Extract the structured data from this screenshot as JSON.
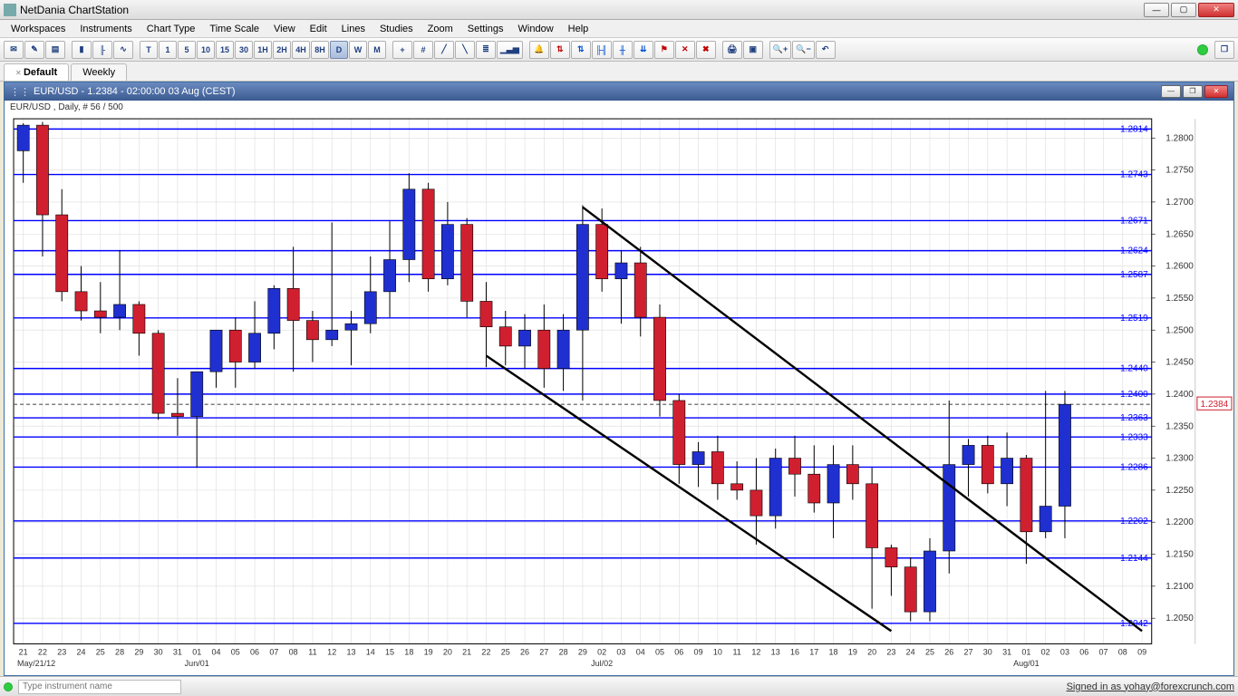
{
  "app": {
    "title": "NetDania ChartStation",
    "signed_in": "Signed in as yohay@forexcrunch.com"
  },
  "menu": [
    "Workspaces",
    "Instruments",
    "Chart Type",
    "Time Scale",
    "View",
    "Edit",
    "Lines",
    "Studies",
    "Zoom",
    "Settings",
    "Window",
    "Help"
  ],
  "toolbar": {
    "timeframes": [
      "T",
      "1",
      "5",
      "10",
      "15",
      "30",
      "1H",
      "2H",
      "4H",
      "8H",
      "D",
      "W",
      "M"
    ],
    "active_tf": "D"
  },
  "tabs": [
    {
      "label": "Default",
      "active": true
    },
    {
      "label": "Weekly",
      "active": false
    }
  ],
  "chart": {
    "header": "EUR/USD - 1.2384 - 02:00:00  03 Aug  (CEST)",
    "subheader": "EUR/USD , Daily, # 56 / 500",
    "current_price": 1.2384,
    "y_axis": {
      "min": 1.201,
      "max": 1.283,
      "step": 0.005,
      "ticks": [
        1.205,
        1.21,
        1.215,
        1.22,
        1.225,
        1.23,
        1.235,
        1.24,
        1.245,
        1.25,
        1.255,
        1.26,
        1.265,
        1.27,
        1.275,
        1.28
      ]
    },
    "x_axis": {
      "start_label": "May/21/12",
      "labels": [
        "21",
        "22",
        "23",
        "24",
        "25",
        "28",
        "29",
        "30",
        "31",
        "01",
        "04",
        "05",
        "06",
        "07",
        "08",
        "11",
        "12",
        "13",
        "14",
        "15",
        "18",
        "19",
        "20",
        "21",
        "22",
        "25",
        "26",
        "27",
        "28",
        "29",
        "02",
        "03",
        "04",
        "05",
        "06",
        "09",
        "10",
        "11",
        "12",
        "13",
        "16",
        "17",
        "18",
        "19",
        "20",
        "23",
        "24",
        "25",
        "26",
        "27",
        "30",
        "31",
        "01",
        "02",
        "03",
        "06",
        "07",
        "08",
        "09"
      ],
      "month_markers": {
        "Jun/01": 9,
        "Jul/02": 30,
        "Aug/01": 52
      }
    },
    "horizontal_lines": {
      "values": [
        1.2042,
        1.2144,
        1.2202,
        1.2286,
        1.2333,
        1.2363,
        1.24,
        1.244,
        1.2519,
        1.2587,
        1.2624,
        1.2671,
        1.2743,
        1.2814
      ],
      "color": "#0000ff"
    },
    "channel": {
      "color": "#000000",
      "width": 2.4,
      "upper_start_idx": 29,
      "upper_start_val": 1.2692,
      "upper_end_idx": 58,
      "upper_end_val": 1.203,
      "lower_start_idx": 24,
      "lower_start_val": 1.246,
      "lower_end_idx": 45,
      "lower_end_val": 1.203
    },
    "colors": {
      "up_body": "#2030d0",
      "down_body": "#d02030",
      "wick": "#000000",
      "grid": "#dcdcdc",
      "axis_text": "#333333",
      "hline_text": "#0000ff",
      "price_box_border": "#d02030",
      "dashed": "#555555"
    },
    "candles": [
      {
        "o": 1.278,
        "h": 1.2823,
        "l": 1.273,
        "c": 1.282
      },
      {
        "o": 1.282,
        "h": 1.2825,
        "l": 1.2615,
        "c": 1.268
      },
      {
        "o": 1.268,
        "h": 1.272,
        "l": 1.2545,
        "c": 1.256
      },
      {
        "o": 1.256,
        "h": 1.26,
        "l": 1.2515,
        "c": 1.253
      },
      {
        "o": 1.253,
        "h": 1.2575,
        "l": 1.2495,
        "c": 1.252
      },
      {
        "o": 1.252,
        "h": 1.2625,
        "l": 1.25,
        "c": 1.254
      },
      {
        "o": 1.254,
        "h": 1.2545,
        "l": 1.246,
        "c": 1.2495
      },
      {
        "o": 1.2495,
        "h": 1.25,
        "l": 1.236,
        "c": 1.237
      },
      {
        "o": 1.237,
        "h": 1.2425,
        "l": 1.2335,
        "c": 1.2365
      },
      {
        "o": 1.2365,
        "h": 1.2385,
        "l": 1.2285,
        "c": 1.2435
      },
      {
        "o": 1.2435,
        "h": 1.25,
        "l": 1.241,
        "c": 1.25
      },
      {
        "o": 1.25,
        "h": 1.252,
        "l": 1.241,
        "c": 1.245
      },
      {
        "o": 1.245,
        "h": 1.2545,
        "l": 1.244,
        "c": 1.2495
      },
      {
        "o": 1.2495,
        "h": 1.257,
        "l": 1.247,
        "c": 1.2565
      },
      {
        "o": 1.2565,
        "h": 1.263,
        "l": 1.2435,
        "c": 1.2515
      },
      {
        "o": 1.2515,
        "h": 1.253,
        "l": 1.245,
        "c": 1.2485
      },
      {
        "o": 1.2485,
        "h": 1.2668,
        "l": 1.2475,
        "c": 1.25
      },
      {
        "o": 1.25,
        "h": 1.253,
        "l": 1.2445,
        "c": 1.251
      },
      {
        "o": 1.251,
        "h": 1.2615,
        "l": 1.2495,
        "c": 1.256
      },
      {
        "o": 1.256,
        "h": 1.267,
        "l": 1.252,
        "c": 1.261
      },
      {
        "o": 1.261,
        "h": 1.2745,
        "l": 1.2575,
        "c": 1.272
      },
      {
        "o": 1.272,
        "h": 1.273,
        "l": 1.256,
        "c": 1.258
      },
      {
        "o": 1.258,
        "h": 1.27,
        "l": 1.257,
        "c": 1.2665
      },
      {
        "o": 1.2665,
        "h": 1.2675,
        "l": 1.252,
        "c": 1.2545
      },
      {
        "o": 1.2545,
        "h": 1.2575,
        "l": 1.2442,
        "c": 1.2505
      },
      {
        "o": 1.2505,
        "h": 1.253,
        "l": 1.2445,
        "c": 1.2475
      },
      {
        "o": 1.2475,
        "h": 1.2525,
        "l": 1.244,
        "c": 1.25
      },
      {
        "o": 1.25,
        "h": 1.254,
        "l": 1.241,
        "c": 1.244
      },
      {
        "o": 1.244,
        "h": 1.2525,
        "l": 1.2405,
        "c": 1.25
      },
      {
        "o": 1.25,
        "h": 1.2695,
        "l": 1.239,
        "c": 1.2665
      },
      {
        "o": 1.2665,
        "h": 1.269,
        "l": 1.256,
        "c": 1.258
      },
      {
        "o": 1.258,
        "h": 1.2625,
        "l": 1.251,
        "c": 1.2605
      },
      {
        "o": 1.2605,
        "h": 1.263,
        "l": 1.249,
        "c": 1.252
      },
      {
        "o": 1.252,
        "h": 1.254,
        "l": 1.2365,
        "c": 1.239
      },
      {
        "o": 1.239,
        "h": 1.24,
        "l": 1.226,
        "c": 1.229
      },
      {
        "o": 1.229,
        "h": 1.2325,
        "l": 1.2255,
        "c": 1.231
      },
      {
        "o": 1.231,
        "h": 1.2335,
        "l": 1.2235,
        "c": 1.226
      },
      {
        "o": 1.226,
        "h": 1.2295,
        "l": 1.2235,
        "c": 1.225
      },
      {
        "o": 1.225,
        "h": 1.23,
        "l": 1.2165,
        "c": 1.221
      },
      {
        "o": 1.221,
        "h": 1.2315,
        "l": 1.219,
        "c": 1.23
      },
      {
        "o": 1.23,
        "h": 1.2335,
        "l": 1.224,
        "c": 1.2275
      },
      {
        "o": 1.2275,
        "h": 1.232,
        "l": 1.2215,
        "c": 1.223
      },
      {
        "o": 1.223,
        "h": 1.232,
        "l": 1.2175,
        "c": 1.229
      },
      {
        "o": 1.229,
        "h": 1.232,
        "l": 1.2235,
        "c": 1.226
      },
      {
        "o": 1.226,
        "h": 1.2285,
        "l": 1.2065,
        "c": 1.216
      },
      {
        "o": 1.216,
        "h": 1.2165,
        "l": 1.2085,
        "c": 1.213
      },
      {
        "o": 1.213,
        "h": 1.2145,
        "l": 1.2045,
        "c": 1.206
      },
      {
        "o": 1.206,
        "h": 1.2175,
        "l": 1.2045,
        "c": 1.2155
      },
      {
        "o": 1.2155,
        "h": 1.239,
        "l": 1.212,
        "c": 1.229
      },
      {
        "o": 1.229,
        "h": 1.233,
        "l": 1.224,
        "c": 1.232
      },
      {
        "o": 1.232,
        "h": 1.2335,
        "l": 1.2245,
        "c": 1.226
      },
      {
        "o": 1.226,
        "h": 1.234,
        "l": 1.2225,
        "c": 1.23
      },
      {
        "o": 1.23,
        "h": 1.2305,
        "l": 1.2135,
        "c": 1.2185
      },
      {
        "o": 1.2185,
        "h": 1.2405,
        "l": 1.2175,
        "c": 1.2225
      },
      {
        "o": 1.2225,
        "h": 1.2405,
        "l": 1.2175,
        "c": 1.2384
      }
    ]
  },
  "instrument_placeholder": "Type instrument name"
}
